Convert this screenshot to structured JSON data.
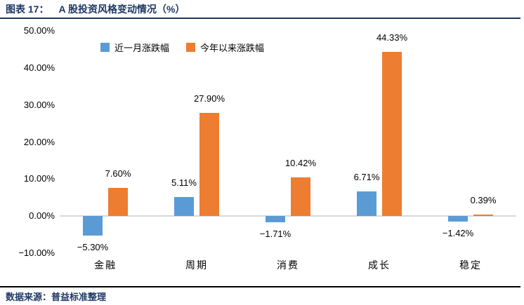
{
  "header": {
    "figure_label": "图表 17：",
    "title": "A 股投资风格变动情况（%）"
  },
  "footer": {
    "source": "数据来源：普益标准整理"
  },
  "colors": {
    "series_blue": "#5B9BD5",
    "series_orange": "#ED7D31",
    "title_navy": "#1F3864",
    "zero_line_gray": "#D9D9D9",
    "footer_rule_black": "#000000"
  },
  "chart_data": {
    "type": "bar",
    "title": "A 股投资风格变动情况（%）",
    "categories": [
      "金融",
      "周期",
      "消费",
      "成长",
      "稳定"
    ],
    "series": [
      {
        "name": "近一月涨跌幅",
        "color": "#5B9BD5",
        "values": [
          -5.3,
          5.11,
          -1.71,
          6.71,
          -1.42
        ],
        "labels": [
          "−5.30%",
          "5.11%",
          "−1.71%",
          "6.71%",
          "−1.42%"
        ]
      },
      {
        "name": "今年以来涨跌幅",
        "color": "#ED7D31",
        "values": [
          7.6,
          27.9,
          10.42,
          44.33,
          0.39
        ],
        "labels": [
          "7.60%",
          "27.90%",
          "10.42%",
          "44.33%",
          "0.39%"
        ]
      }
    ],
    "ylim": [
      -10,
      50
    ],
    "ytick_step": 10,
    "yticks": [
      {
        "value": 50,
        "label": "50.00%"
      },
      {
        "value": 40,
        "label": "40.00%"
      },
      {
        "value": 30,
        "label": "30.00%"
      },
      {
        "value": 20,
        "label": "20.00%"
      },
      {
        "value": 10,
        "label": "10.00%"
      },
      {
        "value": 0,
        "label": "0.00%"
      },
      {
        "value": -10,
        "label": "−10.00%"
      }
    ],
    "grid": false,
    "legend_position": "top-left",
    "data_labels": "outside-end"
  }
}
